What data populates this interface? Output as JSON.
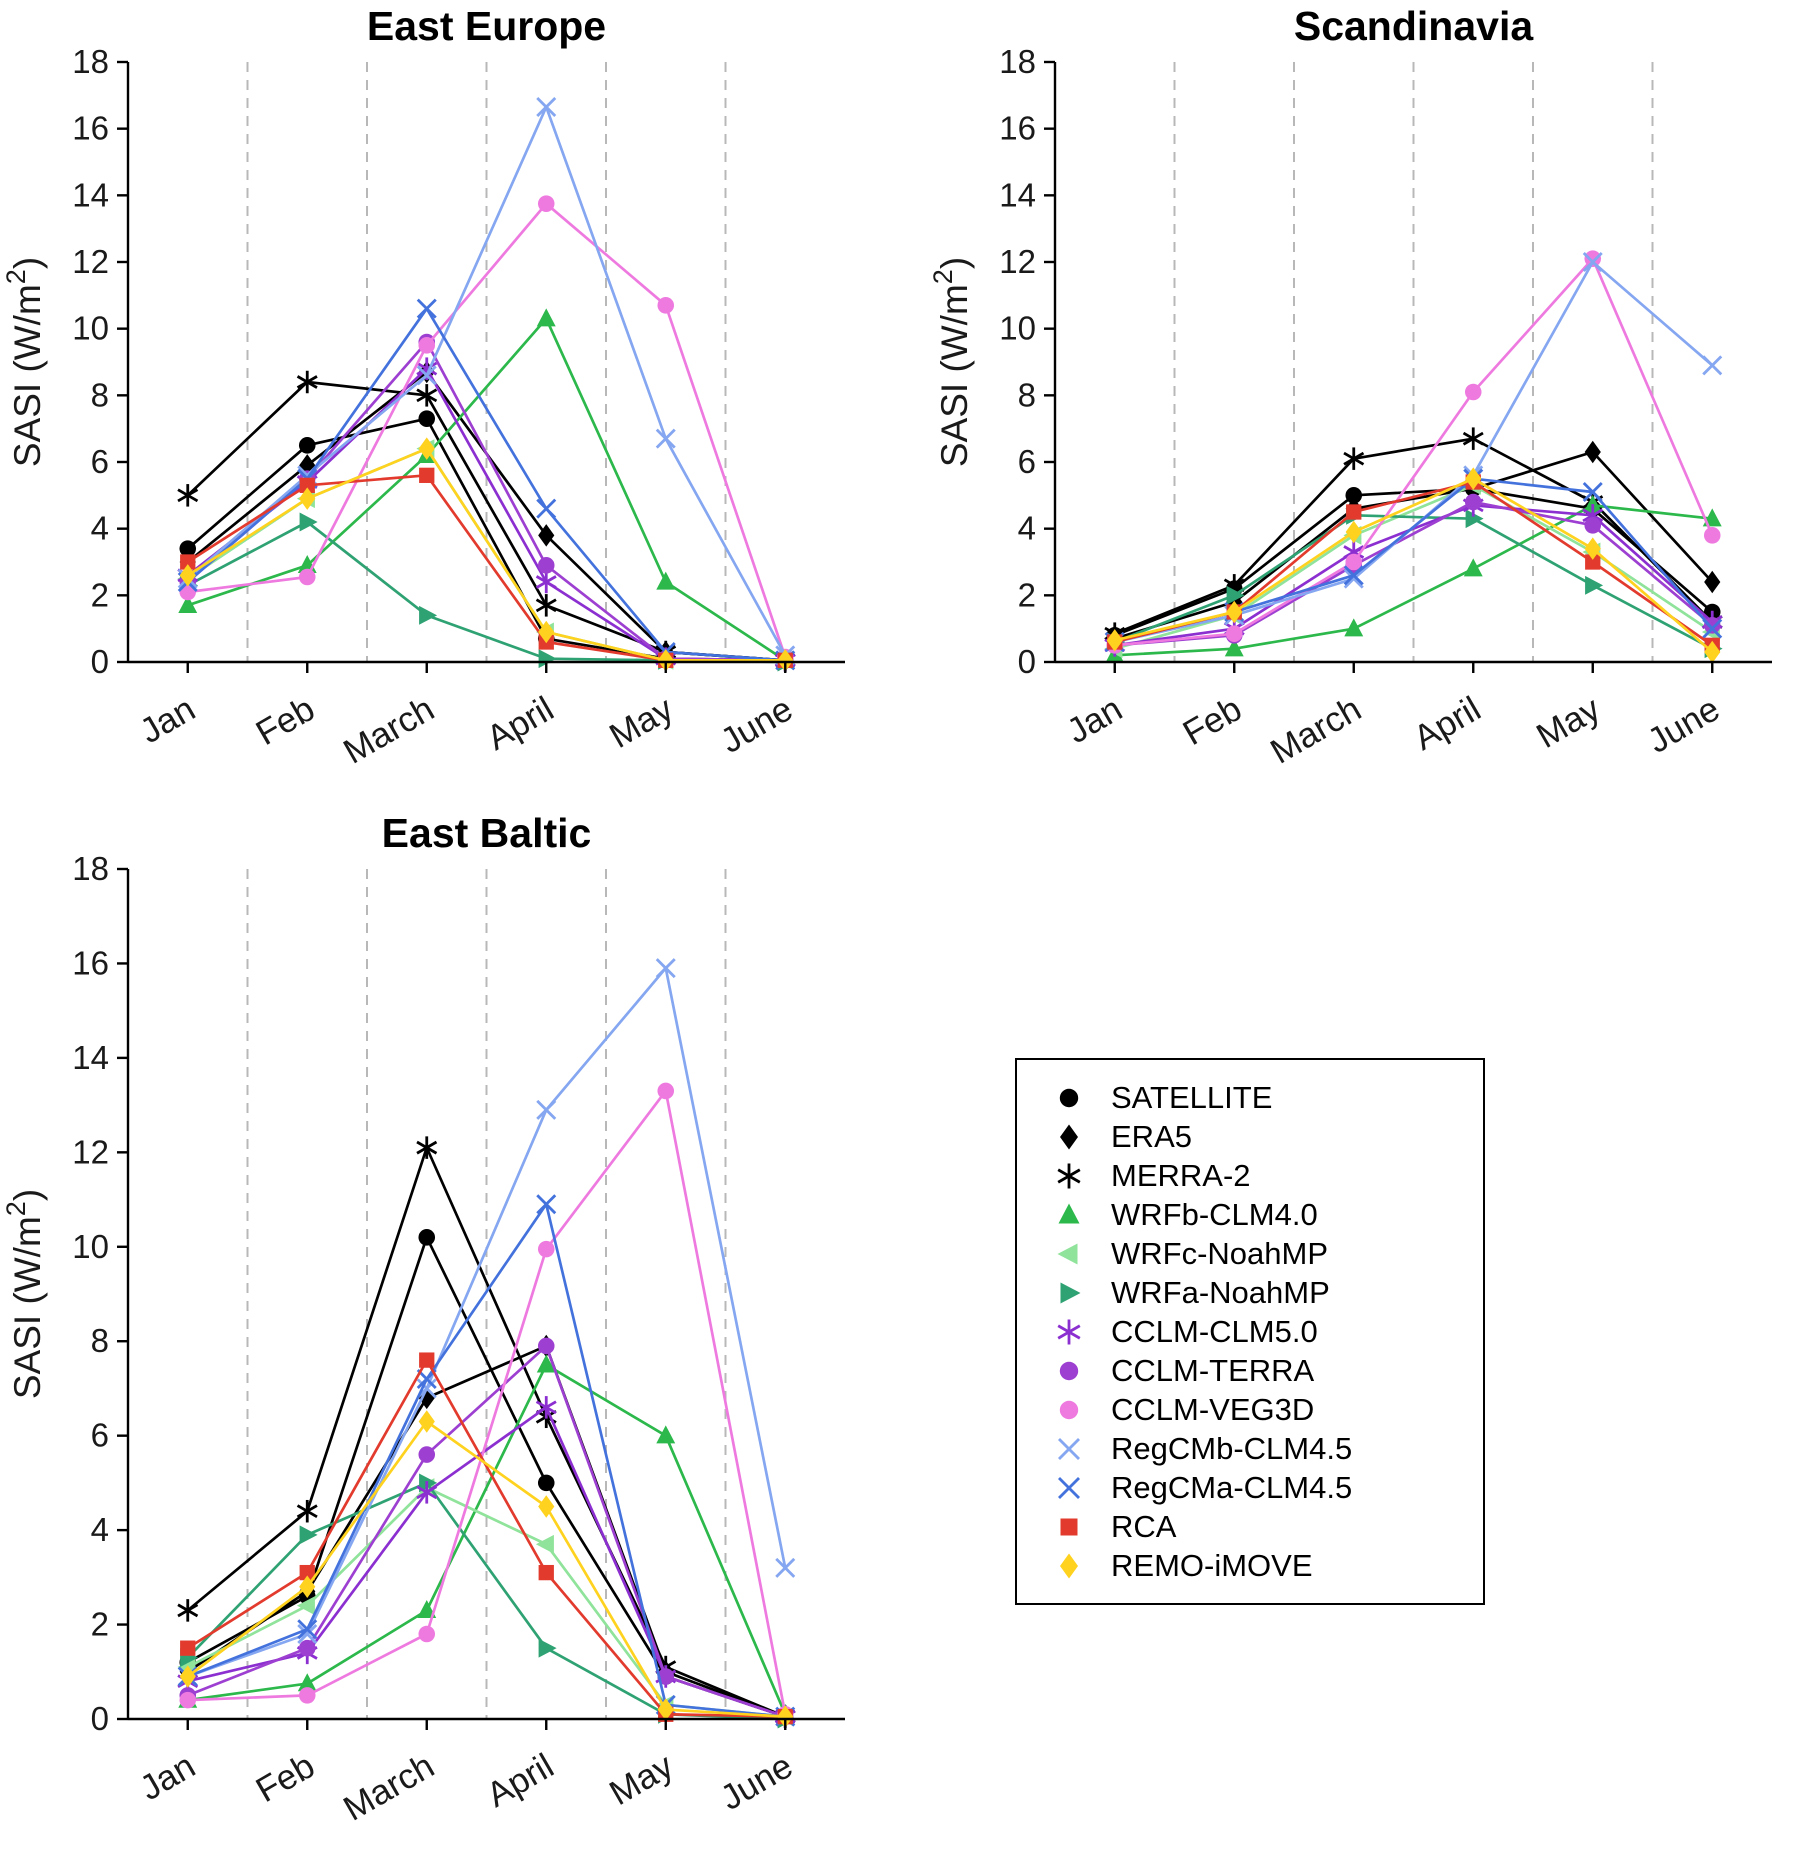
{
  "figure": {
    "ylabel": "SASI (W/m²)"
  },
  "series_styles": [
    {
      "name": "SATELLITE",
      "marker": "circle",
      "color": "#000000"
    },
    {
      "name": "ERA5",
      "marker": "diamond",
      "color": "#000000"
    },
    {
      "name": "MERRA-2",
      "marker": "asterisk",
      "color": "#000000"
    },
    {
      "name": "WRFb-CLM4.0",
      "marker": "triangle-up",
      "color": "#2cb84b"
    },
    {
      "name": "WRFc-NoahMP",
      "marker": "triangle-left",
      "color": "#8fe39a"
    },
    {
      "name": "WRFa-NoahMP",
      "marker": "triangle-right",
      "color": "#2fa273"
    },
    {
      "name": "CCLM-CLM5.0",
      "marker": "asterisk",
      "color": "#8c2fd0"
    },
    {
      "name": "CCLM-TERRA",
      "marker": "circle",
      "color": "#9d3fd1"
    },
    {
      "name": "CCLM-VEG3D",
      "marker": "circle",
      "color": "#ee7ae0"
    },
    {
      "name": "RegCMb-CLM4.5",
      "marker": "x",
      "color": "#85a6f0"
    },
    {
      "name": "RegCMa-CLM4.5",
      "marker": "x",
      "color": "#4472dd"
    },
    {
      "name": "RCA",
      "marker": "square",
      "color": "#e23b2e"
    },
    {
      "name": "REMO-iMOVE",
      "marker": "diamond",
      "color": "#ffd21f"
    }
  ],
  "chart_data": [
    {
      "type": "line",
      "title": "East Europe",
      "xlabel": "",
      "ylabel": "SASI (W/m²)",
      "ylim": [
        0,
        18
      ],
      "ytick_step": 2,
      "grid": "vertical-dashed-between-months",
      "categories": [
        "Jan",
        "Feb",
        "March",
        "April",
        "May",
        "June"
      ],
      "series": [
        {
          "name": "SATELLITE",
          "values": [
            3.4,
            6.5,
            7.3,
            0.7,
            0.1,
            0.05
          ]
        },
        {
          "name": "ERA5",
          "values": [
            3.0,
            5.9,
            8.7,
            3.8,
            0.3,
            0.05
          ]
        },
        {
          "name": "MERRA-2",
          "values": [
            5.0,
            8.4,
            8.0,
            1.7,
            0.3,
            0.05
          ]
        },
        {
          "name": "WRFb-CLM4.0",
          "values": [
            1.7,
            2.9,
            6.2,
            10.3,
            2.4,
            0.05
          ]
        },
        {
          "name": "WRFc-NoahMP",
          "values": [
            2.5,
            4.9,
            6.4,
            0.9,
            0.05,
            0.05
          ]
        },
        {
          "name": "WRFa-NoahMP",
          "values": [
            2.3,
            4.2,
            1.4,
            0.1,
            0.05,
            0.0
          ]
        },
        {
          "name": "CCLM-CLM5.0",
          "values": [
            2.6,
            5.4,
            8.8,
            2.4,
            0.1,
            0.05
          ]
        },
        {
          "name": "CCLM-TERRA",
          "values": [
            2.4,
            5.5,
            9.6,
            2.9,
            0.1,
            0.05
          ]
        },
        {
          "name": "CCLM-VEG3D",
          "values": [
            2.1,
            2.55,
            9.5,
            13.75,
            10.7,
            0.15
          ]
        },
        {
          "name": "RegCMb-CLM4.5",
          "values": [
            2.5,
            5.6,
            8.6,
            16.65,
            6.7,
            0.2
          ]
        },
        {
          "name": "RegCMa-CLM4.5",
          "values": [
            2.4,
            5.5,
            10.6,
            4.6,
            0.3,
            0.05
          ]
        },
        {
          "name": "RCA",
          "values": [
            3.0,
            5.3,
            5.6,
            0.6,
            0.05,
            0.05
          ]
        },
        {
          "name": "REMO-iMOVE",
          "values": [
            2.6,
            4.9,
            6.4,
            0.9,
            0.05,
            0.05
          ]
        }
      ]
    },
    {
      "type": "line",
      "title": "Scandinavia",
      "xlabel": "",
      "ylabel": "SASI (W/m²)",
      "ylim": [
        0,
        18
      ],
      "ytick_step": 2,
      "grid": "vertical-dashed-between-months",
      "categories": [
        "Jan",
        "Feb",
        "March",
        "April",
        "May",
        "June"
      ],
      "series": [
        {
          "name": "SATELLITE",
          "values": [
            0.8,
            2.2,
            5.0,
            5.2,
            4.6,
            1.5
          ]
        },
        {
          "name": "ERA5",
          "values": [
            0.7,
            1.8,
            4.6,
            5.2,
            6.3,
            2.4
          ]
        },
        {
          "name": "MERRA-2",
          "values": [
            0.85,
            2.3,
            6.1,
            6.7,
            4.8,
            1.2
          ]
        },
        {
          "name": "WRFb-CLM4.0",
          "values": [
            0.2,
            0.4,
            1.0,
            2.8,
            4.7,
            4.3
          ]
        },
        {
          "name": "WRFc-NoahMP",
          "values": [
            0.4,
            1.4,
            3.8,
            5.3,
            3.3,
            0.9
          ]
        },
        {
          "name": "WRFa-NoahMP",
          "values": [
            0.6,
            2.0,
            4.4,
            4.3,
            2.3,
            0.4
          ]
        },
        {
          "name": "CCLM-CLM5.0",
          "values": [
            0.5,
            1.0,
            3.3,
            4.7,
            4.4,
            1.2
          ]
        },
        {
          "name": "CCLM-TERRA",
          "values": [
            0.5,
            0.8,
            2.9,
            4.8,
            4.1,
            1.1
          ]
        },
        {
          "name": "CCLM-VEG3D",
          "values": [
            0.5,
            0.85,
            3.0,
            8.1,
            12.1,
            3.8
          ]
        },
        {
          "name": "RegCMb-CLM4.5",
          "values": [
            0.6,
            1.4,
            2.5,
            5.6,
            12.0,
            8.9
          ]
        },
        {
          "name": "RegCMa-CLM4.5",
          "values": [
            0.6,
            1.5,
            2.6,
            5.5,
            5.1,
            1.0
          ]
        },
        {
          "name": "RCA",
          "values": [
            0.6,
            1.5,
            4.5,
            5.4,
            3.0,
            0.5
          ]
        },
        {
          "name": "REMO-iMOVE",
          "values": [
            0.65,
            1.5,
            3.9,
            5.5,
            3.4,
            0.3
          ]
        }
      ]
    },
    {
      "type": "line",
      "title": "East Baltic",
      "xlabel": "",
      "ylabel": "SASI (W/m²)",
      "ylim": [
        0,
        18
      ],
      "ytick_step": 2,
      "grid": "vertical-dashed-between-months",
      "categories": [
        "Jan",
        "Feb",
        "March",
        "April",
        "May",
        "June"
      ],
      "series": [
        {
          "name": "SATELLITE",
          "values": [
            1.2,
            2.6,
            10.2,
            5.0,
            0.9,
            0.05
          ]
        },
        {
          "name": "ERA5",
          "values": [
            1.0,
            2.7,
            6.8,
            7.9,
            1.0,
            0.05
          ]
        },
        {
          "name": "MERRA-2",
          "values": [
            2.3,
            4.4,
            12.1,
            6.4,
            1.1,
            0.05
          ]
        },
        {
          "name": "WRFb-CLM4.0",
          "values": [
            0.4,
            0.75,
            2.3,
            7.5,
            6.0,
            0.1
          ]
        },
        {
          "name": "WRFc-NoahMP",
          "values": [
            1.1,
            2.4,
            4.9,
            3.7,
            0.3,
            0.05
          ]
        },
        {
          "name": "WRFa-NoahMP",
          "values": [
            1.3,
            3.9,
            5.0,
            1.5,
            0.1,
            0.0
          ]
        },
        {
          "name": "CCLM-CLM5.0",
          "values": [
            0.8,
            1.4,
            4.8,
            6.6,
            0.9,
            0.05
          ]
        },
        {
          "name": "CCLM-TERRA",
          "values": [
            0.5,
            1.5,
            5.6,
            7.9,
            0.9,
            0.05
          ]
        },
        {
          "name": "CCLM-VEG3D",
          "values": [
            0.4,
            0.5,
            1.8,
            9.95,
            13.3,
            0.1
          ]
        },
        {
          "name": "RegCMb-CLM4.5",
          "values": [
            0.9,
            1.8,
            7.0,
            12.9,
            15.9,
            3.2
          ]
        },
        {
          "name": "RegCMa-CLM4.5",
          "values": [
            0.9,
            1.9,
            7.2,
            10.9,
            0.3,
            0.05
          ]
        },
        {
          "name": "RCA",
          "values": [
            1.5,
            3.1,
            7.6,
            3.1,
            0.1,
            0.05
          ]
        },
        {
          "name": "REMO-iMOVE",
          "values": [
            0.9,
            2.8,
            6.3,
            4.5,
            0.2,
            0.05
          ]
        }
      ]
    }
  ],
  "legend": {
    "position": "bottom-right",
    "entries": [
      "SATELLITE",
      "ERA5",
      "MERRA-2",
      "WRFb-CLM4.0",
      "WRFc-NoahMP",
      "WRFa-NoahMP",
      "CCLM-CLM5.0",
      "CCLM-TERRA",
      "CCLM-VEG3D",
      "RegCMb-CLM4.5",
      "RegCMa-CLM4.5",
      "RCA",
      "REMO-iMOVE"
    ]
  }
}
